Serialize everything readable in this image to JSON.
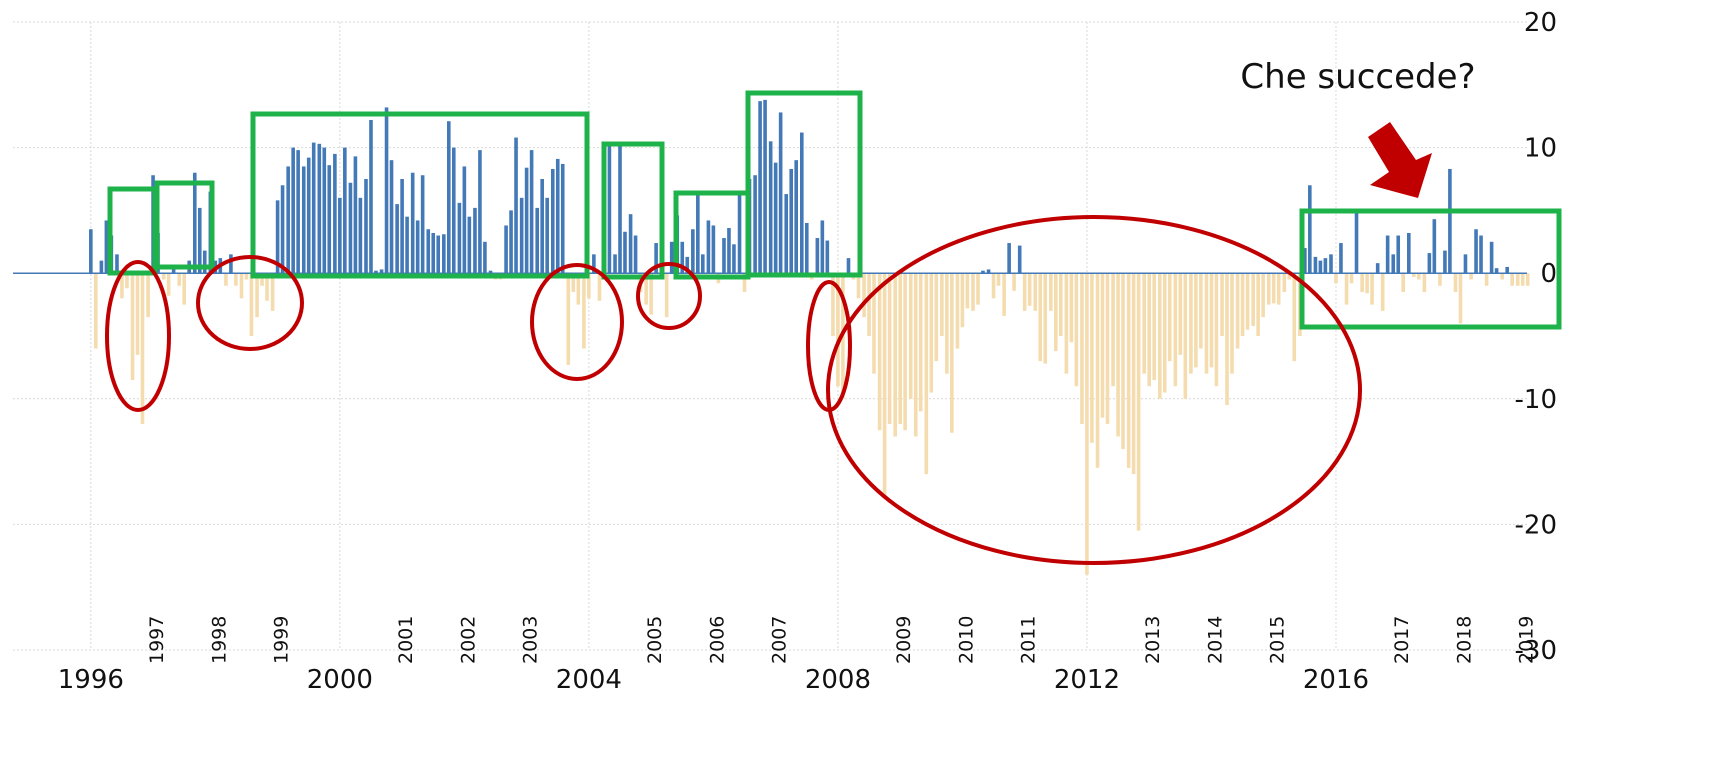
{
  "chart_data": {
    "type": "bar",
    "annotation": "Che succede?",
    "year_labels": [
      "1997",
      "1998",
      "1999",
      "2001",
      "2002",
      "2003",
      "2005",
      "2006",
      "2007",
      "2009",
      "2010",
      "2011",
      "2013",
      "2014",
      "2015",
      "2017",
      "2018",
      "2019"
    ],
    "positive_color": "#4379b7",
    "negative_color": "#f4dcae",
    "xlim": [
      1994.75,
      2020
    ],
    "xticks": [
      1996,
      2000,
      2004,
      2008,
      2012,
      2016
    ],
    "ylim": [
      -30,
      20
    ],
    "yticks": [
      20,
      10,
      0,
      -10,
      -20,
      -30
    ],
    "grid": true,
    "x": [
      1996,
      1996.08,
      1996.17,
      1996.25,
      1996.33,
      1996.42,
      1996.5,
      1996.58,
      1996.67,
      1996.75,
      1996.83,
      1996.92,
      1997,
      1997.08,
      1997.17,
      1997.25,
      1997.33,
      1997.42,
      1997.5,
      1997.58,
      1997.67,
      1997.75,
      1997.83,
      1997.92,
      1998,
      1998.08,
      1998.17,
      1998.25,
      1998.33,
      1998.42,
      1998.5,
      1998.58,
      1998.67,
      1998.75,
      1998.83,
      1998.92,
      1999,
      1999.08,
      1999.17,
      1999.25,
      1999.33,
      1999.42,
      1999.5,
      1999.58,
      1999.67,
      1999.75,
      1999.83,
      1999.92,
      2000,
      2000.08,
      2000.17,
      2000.25,
      2000.33,
      2000.42,
      2000.5,
      2000.58,
      2000.67,
      2000.75,
      2000.83,
      2000.92,
      2001,
      2001.08,
      2001.17,
      2001.25,
      2001.33,
      2001.42,
      2001.5,
      2001.58,
      2001.67,
      2001.75,
      2001.83,
      2001.92,
      2002,
      2002.08,
      2002.17,
      2002.25,
      2002.33,
      2002.42,
      2002.5,
      2002.58,
      2002.67,
      2002.75,
      2002.83,
      2002.92,
      2003,
      2003.08,
      2003.17,
      2003.25,
      2003.33,
      2003.42,
      2003.5,
      2003.58,
      2003.67,
      2003.75,
      2003.83,
      2003.92,
      2004,
      2004.08,
      2004.17,
      2004.25,
      2004.33,
      2004.42,
      2004.5,
      2004.58,
      2004.67,
      2004.75,
      2004.83,
      2004.92,
      2005,
      2005.08,
      2005.17,
      2005.25,
      2005.33,
      2005.42,
      2005.5,
      2005.58,
      2005.67,
      2005.75,
      2005.83,
      2005.92,
      2006,
      2006.08,
      2006.17,
      2006.25,
      2006.33,
      2006.42,
      2006.5,
      2006.58,
      2006.67,
      2006.75,
      2006.83,
      2006.92,
      2007,
      2007.08,
      2007.17,
      2007.25,
      2007.33,
      2007.42,
      2007.5,
      2007.58,
      2007.67,
      2007.75,
      2007.83,
      2007.92,
      2008,
      2008.08,
      2008.17,
      2008.25,
      2008.33,
      2008.42,
      2008.5,
      2008.58,
      2008.67,
      2008.75,
      2008.83,
      2008.92,
      2009,
      2009.08,
      2009.17,
      2009.25,
      2009.33,
      2009.42,
      2009.5,
      2009.58,
      2009.67,
      2009.75,
      2009.83,
      2009.92,
      2010,
      2010.08,
      2010.17,
      2010.25,
      2010.33,
      2010.42,
      2010.5,
      2010.58,
      2010.67,
      2010.75,
      2010.83,
      2010.92,
      2011,
      2011.08,
      2011.17,
      2011.25,
      2011.33,
      2011.42,
      2011.5,
      2011.58,
      2011.67,
      2011.75,
      2011.83,
      2011.92,
      2012,
      2012.08,
      2012.17,
      2012.25,
      2012.33,
      2012.42,
      2012.5,
      2012.58,
      2012.67,
      2012.75,
      2012.83,
      2012.92,
      2013,
      2013.08,
      2013.17,
      2013.25,
      2013.33,
      2013.42,
      2013.5,
      2013.58,
      2013.67,
      2013.75,
      2013.83,
      2013.92,
      2014,
      2014.08,
      2014.17,
      2014.25,
      2014.33,
      2014.42,
      2014.5,
      2014.58,
      2014.67,
      2014.75,
      2014.83,
      2014.92,
      2015,
      2015.08,
      2015.17,
      2015.25,
      2015.33,
      2015.42,
      2015.5,
      2015.58,
      2015.67,
      2015.75,
      2015.83,
      2015.92,
      2016,
      2016.08,
      2016.17,
      2016.25,
      2016.33,
      2016.42,
      2016.5,
      2016.58,
      2016.67,
      2016.75,
      2016.83,
      2016.92,
      2017,
      2017.08,
      2017.17,
      2017.25,
      2017.33,
      2017.42,
      2017.5,
      2017.58,
      2017.67,
      2017.75,
      2017.83,
      2017.92,
      2018,
      2018.08,
      2018.17,
      2018.25,
      2018.33,
      2018.42,
      2018.5,
      2018.58,
      2018.67,
      2018.75,
      2018.83,
      2018.92,
      2019,
      2019.08
    ],
    "values": [
      3.5,
      -6,
      1,
      4.2,
      3,
      1.5,
      -2,
      -1.2,
      -8.5,
      -6.5,
      -12,
      -3.5,
      7.8,
      3.2,
      -0.5,
      -1.8,
      0.5,
      -1,
      -2.5,
      1,
      8,
      5.2,
      1.8,
      6.5,
      1,
      1.2,
      -1,
      1.5,
      -1,
      -2,
      -0.5,
      -5,
      -3.5,
      -1,
      -2.2,
      -3,
      5.8,
      7,
      8.5,
      10,
      9.8,
      8.5,
      9.2,
      10.4,
      10.3,
      10,
      8.6,
      9.5,
      6,
      10,
      7.2,
      9.3,
      6,
      7.5,
      12.2,
      0.2,
      0.3,
      13.2,
      9,
      5.5,
      7.5,
      4.5,
      8,
      4.2,
      7.8,
      3.5,
      3.2,
      3,
      3.1,
      12.1,
      10,
      5.6,
      8.5,
      4.5,
      5.2,
      9.8,
      2.5,
      0.2,
      -0.5,
      -0.5,
      3.8,
      5,
      10.8,
      6,
      8.4,
      9.8,
      5.2,
      7.5,
      6,
      8.3,
      9.1,
      8.7,
      -7.3,
      -1.5,
      -2.5,
      -6,
      -2,
      1.5,
      -2.2,
      3,
      10.1,
      1.5,
      10.2,
      3.3,
      4.7,
      3,
      -1.5,
      -2.5,
      -3.3,
      2.4,
      1.8,
      -3.5,
      2.5,
      4.6,
      2.5,
      1.3,
      3.5,
      6.3,
      1.5,
      4.2,
      3.8,
      -0.8,
      2.8,
      3.6,
      2.3,
      6.2,
      -1.5,
      7.5,
      7.8,
      13.7,
      13.8,
      10.5,
      8.8,
      12.8,
      6.3,
      8.3,
      9,
      11.2,
      4,
      -0.5,
      2.8,
      4.2,
      2.6,
      -5,
      -9,
      -10,
      1.2,
      -0.5,
      -2,
      -3.5,
      -5,
      -8,
      -12.5,
      -17.7,
      -12,
      -13,
      -12,
      -12.5,
      -10,
      -13,
      -11,
      -16,
      -9.5,
      -7,
      -5,
      -8,
      -12.7,
      -6,
      -4.3,
      -2.8,
      -3,
      -2.5,
      0.2,
      0.3,
      -2,
      -1,
      -3.4,
      2.4,
      -1.4,
      2.2,
      -3,
      -2.6,
      -3,
      -7,
      -7.2,
      -3,
      -6.2,
      -5,
      -8,
      -5.5,
      -9,
      -12,
      -24,
      -13.5,
      -15.5,
      -11.5,
      -12,
      -9,
      -13,
      -14,
      -15.5,
      -16,
      -20.5,
      -8,
      -9,
      -8.5,
      -10,
      -9.5,
      -7,
      -9,
      -6.5,
      -10,
      -8,
      -7.5,
      -6,
      -8,
      -7.5,
      -9,
      -5,
      -10.5,
      -8,
      -6,
      -5,
      -4.5,
      -4.2,
      -5,
      -3.5,
      -2.5,
      -2.4,
      -2.5,
      -1.5,
      -0.5,
      -7,
      -5,
      2,
      7,
      1.3,
      1,
      1.2,
      1.5,
      -0.8,
      2.4,
      -2.5,
      -0.8,
      5,
      -1.5,
      -1.6,
      -2.5,
      0.8,
      -3,
      3,
      1.5,
      3,
      -1.5,
      3.2,
      -0.3,
      -0.5,
      -1.5,
      1.6,
      4.3,
      -1,
      1.8,
      8.3,
      -1.5,
      -4,
      1.5,
      -0.5,
      3.5,
      3,
      -1,
      2.5,
      0.4,
      -0.5,
      0.5,
      -1,
      -1,
      -1,
      -1
    ]
  }
}
